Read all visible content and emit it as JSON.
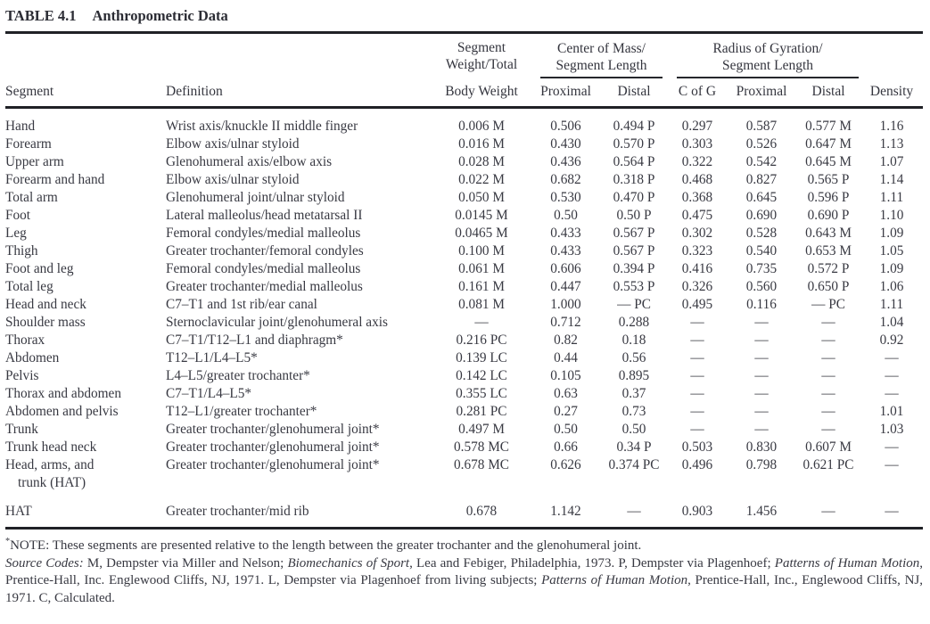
{
  "title": {
    "label": "TABLE 4.1",
    "caption": "Anthropometric Data"
  },
  "table": {
    "headers": {
      "segment": "Segment",
      "definition": "Definition",
      "weight_line1": "Segment",
      "weight_line2": "Weight/Total",
      "weight_line3": "Body Weight",
      "com_line1": "Center of Mass/",
      "com_line2": "Segment Length",
      "com_proximal": "Proximal",
      "com_distal": "Distal",
      "rog_line1": "Radius of Gyration/",
      "rog_line2": "Segment Length",
      "rog_cofg": "C of G",
      "rog_proximal": "Proximal",
      "rog_distal": "Distal",
      "density": "Density"
    },
    "rows": [
      {
        "segment": "Hand",
        "definition": "Wrist axis/knuckle II middle finger",
        "weight": "0.006 M",
        "com_proximal": "0.506",
        "com_distal": "0.494 P",
        "rog_cofg": "0.297",
        "rog_proximal": "0.587",
        "rog_distal": "0.577 M",
        "density": "1.16"
      },
      {
        "segment": "Forearm",
        "definition": "Elbow axis/ulnar styloid",
        "weight": "0.016 M",
        "com_proximal": "0.430",
        "com_distal": "0.570 P",
        "rog_cofg": "0.303",
        "rog_proximal": "0.526",
        "rog_distal": "0.647 M",
        "density": "1.13"
      },
      {
        "segment": "Upper arm",
        "definition": "Glenohumeral axis/elbow axis",
        "weight": "0.028 M",
        "com_proximal": "0.436",
        "com_distal": "0.564 P",
        "rog_cofg": "0.322",
        "rog_proximal": "0.542",
        "rog_distal": "0.645 M",
        "density": "1.07"
      },
      {
        "segment": "Forearm and hand",
        "definition": "Elbow axis/ulnar styloid",
        "weight": "0.022 M",
        "com_proximal": "0.682",
        "com_distal": "0.318 P",
        "rog_cofg": "0.468",
        "rog_proximal": "0.827",
        "rog_distal": "0.565 P",
        "density": "1.14"
      },
      {
        "segment": "Total arm",
        "definition": "Glenohumeral joint/ulnar styloid",
        "weight": "0.050 M",
        "com_proximal": "0.530",
        "com_distal": "0.470 P",
        "rog_cofg": "0.368",
        "rog_proximal": "0.645",
        "rog_distal": "0.596 P",
        "density": "1.11"
      },
      {
        "segment": "Foot",
        "definition": "Lateral malleolus/head metatarsal II",
        "weight": "0.0145 M",
        "com_proximal": "0.50",
        "com_distal": "0.50 P",
        "rog_cofg": "0.475",
        "rog_proximal": "0.690",
        "rog_distal": "0.690 P",
        "density": "1.10"
      },
      {
        "segment": "Leg",
        "definition": "Femoral condyles/medial malleolus",
        "weight": "0.0465 M",
        "com_proximal": "0.433",
        "com_distal": "0.567 P",
        "rog_cofg": "0.302",
        "rog_proximal": "0.528",
        "rog_distal": "0.643 M",
        "density": "1.09"
      },
      {
        "segment": "Thigh",
        "definition": "Greater trochanter/femoral condyles",
        "weight": "0.100 M",
        "com_proximal": "0.433",
        "com_distal": "0.567 P",
        "rog_cofg": "0.323",
        "rog_proximal": "0.540",
        "rog_distal": "0.653 M",
        "density": "1.05"
      },
      {
        "segment": "Foot and leg",
        "definition": "Femoral condyles/medial malleolus",
        "weight": "0.061 M",
        "com_proximal": "0.606",
        "com_distal": "0.394 P",
        "rog_cofg": "0.416",
        "rog_proximal": "0.735",
        "rog_distal": "0.572 P",
        "density": "1.09"
      },
      {
        "segment": "Total leg",
        "definition": "Greater trochanter/medial malleolus",
        "weight": "0.161 M",
        "com_proximal": "0.447",
        "com_distal": "0.553 P",
        "rog_cofg": "0.326",
        "rog_proximal": "0.560",
        "rog_distal": "0.650 P",
        "density": "1.06"
      },
      {
        "segment": "Head and neck",
        "definition": "C7–T1 and 1st rib/ear canal",
        "weight": "0.081 M",
        "com_proximal": "1.000",
        "com_distal": "— PC",
        "rog_cofg": "0.495",
        "rog_proximal": "0.116",
        "rog_distal": "— PC",
        "density": "1.11"
      },
      {
        "segment": "Shoulder mass",
        "definition": "Sternoclavicular joint/glenohumeral axis",
        "weight": "—",
        "com_proximal": "0.712",
        "com_distal": "0.288",
        "rog_cofg": "—",
        "rog_proximal": "—",
        "rog_distal": "—",
        "density": "1.04"
      },
      {
        "segment": "Thorax",
        "definition": "C7–T1/T12–L1 and diaphragm*",
        "weight": "0.216 PC",
        "com_proximal": "0.82",
        "com_distal": "0.18",
        "rog_cofg": "—",
        "rog_proximal": "—",
        "rog_distal": "—",
        "density": "0.92"
      },
      {
        "segment": "Abdomen",
        "definition": "T12–L1/L4–L5*",
        "weight": "0.139 LC",
        "com_proximal": "0.44",
        "com_distal": "0.56",
        "rog_cofg": "—",
        "rog_proximal": "—",
        "rog_distal": "—",
        "density": "—"
      },
      {
        "segment": "Pelvis",
        "definition": "L4–L5/greater trochanter*",
        "weight": "0.142 LC",
        "com_proximal": "0.105",
        "com_distal": "0.895",
        "rog_cofg": "—",
        "rog_proximal": "—",
        "rog_distal": "—",
        "density": "—"
      },
      {
        "segment": "Thorax and abdomen",
        "definition": "C7–T1/L4–L5*",
        "weight": "0.355 LC",
        "com_proximal": "0.63",
        "com_distal": "0.37",
        "rog_cofg": "—",
        "rog_proximal": "—",
        "rog_distal": "—",
        "density": "—"
      },
      {
        "segment": "Abdomen and pelvis",
        "definition": "T12–L1/greater trochanter*",
        "weight": "0.281 PC",
        "com_proximal": "0.27",
        "com_distal": "0.73",
        "rog_cofg": "—",
        "rog_proximal": "—",
        "rog_distal": "—",
        "density": "1.01"
      },
      {
        "segment": "Trunk",
        "definition": "Greater trochanter/glenohumeral joint*",
        "weight": "0.497 M",
        "com_proximal": "0.50",
        "com_distal": "0.50",
        "rog_cofg": "—",
        "rog_proximal": "—",
        "rog_distal": "—",
        "density": "1.03"
      },
      {
        "segment": "Trunk head neck",
        "definition": "Greater trochanter/glenohumeral joint*",
        "weight": "0.578 MC",
        "com_proximal": "0.66",
        "com_distal": "0.34 P",
        "rog_cofg": "0.503",
        "rog_proximal": "0.830",
        "rog_distal": "0.607 M",
        "density": "—"
      },
      {
        "segment": "Head, arms, and\ntrunk (HAT)",
        "definition": "Greater trochanter/glenohumeral joint*",
        "weight": "0.678 MC",
        "com_proximal": "0.626",
        "com_distal": "0.374 PC",
        "rog_cofg": "0.496",
        "rog_proximal": "0.798",
        "rog_distal": "0.621 PC",
        "density": "—"
      },
      {
        "segment": "HAT",
        "definition": "Greater trochanter/mid rib",
        "weight": "0.678",
        "com_proximal": "1.142",
        "com_distal": "—",
        "rog_cofg": "0.903",
        "rog_proximal": "1.456",
        "rog_distal": "—",
        "density": "—",
        "gap_before": true
      }
    ]
  },
  "footnote": {
    "note_runs": [
      {
        "t": "*",
        "sup": true
      },
      {
        "t": "NOTE: These segments are presented relative to the length between the greater trochanter and the glenohumeral joint."
      }
    ],
    "source_runs": [
      {
        "t": "Source Codes:",
        "i": true
      },
      {
        "t": " M, Dempster via Miller and Nelson; "
      },
      {
        "t": "Biomechanics of Sport",
        "i": true
      },
      {
        "t": ", Lea and Febiger, Philadelphia, 1973. P, Dempster via Plagenhoef; "
      },
      {
        "t": "Patterns of Human Motion",
        "i": true
      },
      {
        "t": ", Prentice-Hall, Inc. Englewood Cliffs, NJ, 1971. L, Dempster via Plagenhoef from living subjects; "
      },
      {
        "t": "Patterns of Human Motion",
        "i": true
      },
      {
        "t": ", Prentice-Hall, Inc., Englewood Cliffs, NJ, 1971. C, Calculated."
      }
    ]
  }
}
